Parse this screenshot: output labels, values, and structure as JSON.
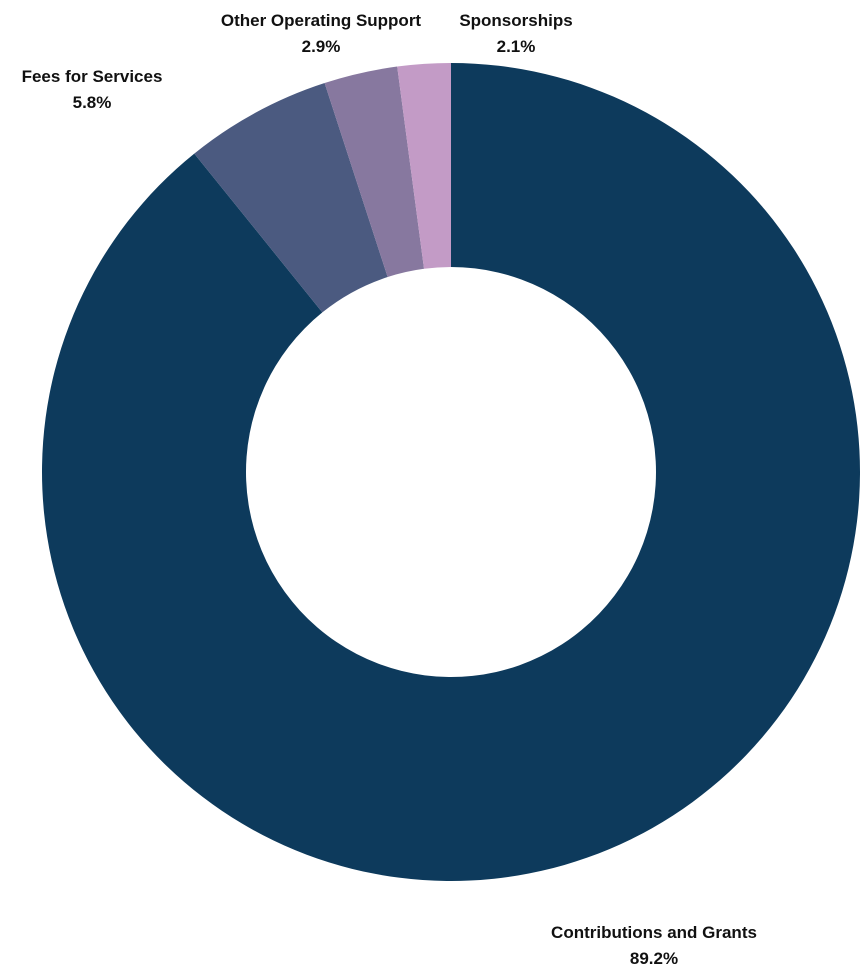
{
  "chart_data": {
    "type": "pie",
    "variant": "donut",
    "title": "",
    "slices": [
      {
        "label": "Contributions and Grants",
        "value": 89.2,
        "value_label": "89.2%",
        "color": "#0d3a5c"
      },
      {
        "label": "Fees for Services",
        "value": 5.8,
        "value_label": "5.8%",
        "color": "#4b5a80"
      },
      {
        "label": "Other Operating Support",
        "value": 2.9,
        "value_label": "2.9%",
        "color": "#87789f"
      },
      {
        "label": "Sponsorships",
        "value": 2.1,
        "value_label": "2.1%",
        "color": "#c39bc6"
      }
    ],
    "legend": "none",
    "labels_position": "outside"
  }
}
